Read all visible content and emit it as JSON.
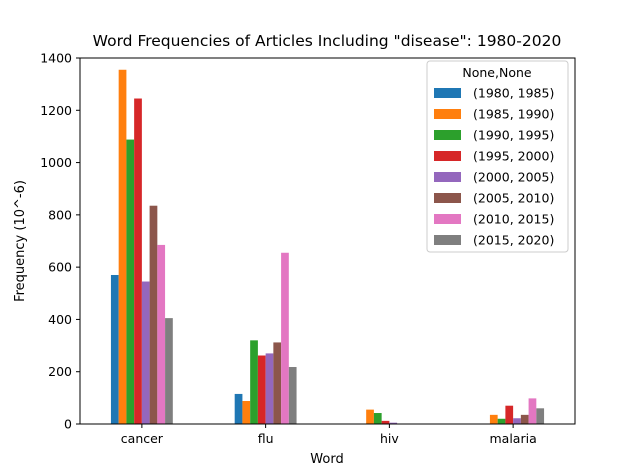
{
  "chart_data": {
    "type": "bar",
    "title": "Word Frequencies of Articles Including \"disease\": 1980-2020",
    "xlabel": "Word",
    "ylabel": "Frequency (10^-6)",
    "ylim": [
      0,
      1400
    ],
    "yticks": [
      0,
      200,
      400,
      600,
      800,
      1000,
      1200,
      1400
    ],
    "categories": [
      "cancer",
      "flu",
      "hiv",
      "malaria"
    ],
    "legend": {
      "title": "None,None",
      "placement": "top-right"
    },
    "grid": false,
    "series": [
      {
        "name": "(1980, 1985)",
        "color": "#1f77b4",
        "values": [
          570,
          115,
          0,
          0
        ]
      },
      {
        "name": "(1985, 1990)",
        "color": "#ff7f0e",
        "values": [
          1355,
          88,
          55,
          35
        ]
      },
      {
        "name": "(1990, 1995)",
        "color": "#2ca02c",
        "values": [
          1088,
          320,
          42,
          20
        ]
      },
      {
        "name": "(1995, 2000)",
        "color": "#d62728",
        "values": [
          1245,
          262,
          12,
          70
        ]
      },
      {
        "name": "(2000, 2005)",
        "color": "#9467bd",
        "values": [
          545,
          270,
          5,
          22
        ]
      },
      {
        "name": "(2005, 2010)",
        "color": "#8c564b",
        "values": [
          835,
          312,
          0,
          35
        ]
      },
      {
        "name": "(2010, 2015)",
        "color": "#e377c2",
        "values": [
          685,
          655,
          0,
          98
        ]
      },
      {
        "name": "(2015, 2020)",
        "color": "#7f7f7f",
        "values": [
          405,
          218,
          0,
          60
        ]
      }
    ]
  }
}
